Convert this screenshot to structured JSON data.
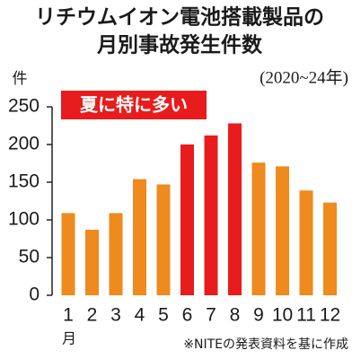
{
  "chart_data": {
    "type": "bar",
    "title": [
      "リチウムイオン電池搭載製品の",
      "月別事故発生件数"
    ],
    "subtitle": "(2020~24年)",
    "y_label": "件",
    "x_label": "月",
    "annotation": "夏に特に多い",
    "source": "※NITEの発表資料を基に作成",
    "categories": [
      "1",
      "2",
      "3",
      "4",
      "5",
      "6",
      "7",
      "8",
      "9",
      "10",
      "11",
      "12"
    ],
    "values": [
      109,
      87,
      109,
      154,
      147,
      200,
      212,
      228,
      176,
      171,
      139,
      123
    ],
    "colors": [
      "#ee8a1e",
      "#ee8a1e",
      "#ee8a1e",
      "#ee8a1e",
      "#ee8a1e",
      "#e81c1c",
      "#e81c1c",
      "#e81c1c",
      "#ee8a1e",
      "#ee8a1e",
      "#ee8a1e",
      "#ee8a1e"
    ],
    "annotation_color": "#e81c1c",
    "ylim": [
      0,
      250
    ],
    "yticks": [
      0,
      50,
      100,
      150,
      200,
      250
    ],
    "grid": false
  }
}
